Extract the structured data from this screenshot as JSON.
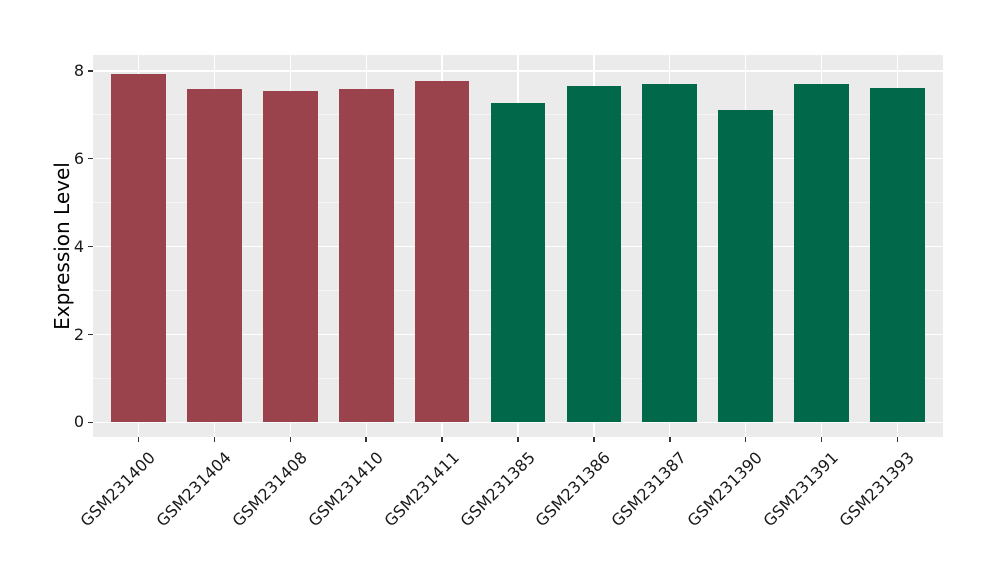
{
  "style": {
    "background": "#FFFFFF",
    "panel_bg": "#EBEBEB",
    "grid_major": "#FFFFFF",
    "grid_minor": "#FFFFFF",
    "tick_color": "#333333",
    "text_color": "#1a1a1a",
    "bar_red": "#9B434D",
    "bar_green": "#01694A"
  },
  "chart_data": {
    "type": "bar",
    "title": "",
    "xlabel": "",
    "ylabel": "Expression Level",
    "categories": [
      "GSM231400",
      "GSM231404",
      "GSM231408",
      "GSM231410",
      "GSM231411",
      "GSM231385",
      "GSM231386",
      "GSM231387",
      "GSM231390",
      "GSM231391",
      "GSM231393"
    ],
    "values": [
      7.93,
      7.58,
      7.53,
      7.58,
      7.76,
      7.27,
      7.65,
      7.69,
      7.1,
      7.69,
      7.62
    ],
    "bar_colors": [
      "#9B434D",
      "#9B434D",
      "#9B434D",
      "#9B434D",
      "#9B434D",
      "#01694A",
      "#01694A",
      "#01694A",
      "#01694A",
      "#01694A",
      "#01694A"
    ],
    "series": [
      {
        "name": "red-group",
        "color": "#9B434D",
        "categories": [
          "GSM231400",
          "GSM231404",
          "GSM231408",
          "GSM231410",
          "GSM231411"
        ],
        "values": [
          7.93,
          7.58,
          7.53,
          7.58,
          7.76
        ]
      },
      {
        "name": "green-group",
        "color": "#01694A",
        "categories": [
          "GSM231385",
          "GSM231386",
          "GSM231387",
          "GSM231390",
          "GSM231391",
          "GSM231393"
        ],
        "values": [
          7.27,
          7.65,
          7.69,
          7.1,
          7.69,
          7.62
        ]
      }
    ],
    "yticks": [
      0,
      2,
      4,
      6,
      8
    ],
    "ytick_labels": [
      "0",
      "2",
      "4",
      "6",
      "8"
    ],
    "yticks_minor": [
      1,
      3,
      5,
      7
    ],
    "ylim": [
      -0.33,
      8.36
    ],
    "bar_width": 0.72,
    "x_tick_rotation": 45,
    "grid": "on",
    "legend": "none"
  }
}
